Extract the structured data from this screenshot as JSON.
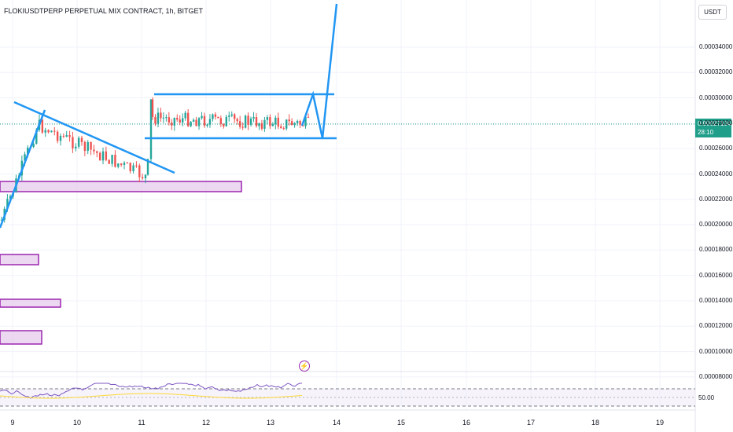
{
  "header": {
    "title": "FLOKIUSDTPERP PERPETUAL MIX CONTRACT, 1h, BITGET"
  },
  "price_scale": {
    "currency": "USDT",
    "labels": [
      "0.00034000",
      "0.00032000",
      "0.00030000",
      "0.00028000",
      "0.00026000",
      "0.00024000",
      "0.00022000",
      "0.00020000",
      "0.00018000",
      "0.00016000",
      "0.00014000",
      "0.00012000",
      "0.00010000",
      "0.00008000"
    ],
    "last_price": "0.00027104",
    "countdown": "28:10"
  },
  "time_axis": {
    "labels": [
      "9",
      "10",
      "11",
      "12",
      "13",
      "14",
      "15",
      "16",
      "17",
      "18",
      "19"
    ]
  },
  "rsi": {
    "level_label": "50.00"
  },
  "colors": {
    "up": "#26a69a",
    "down": "#ef5350",
    "drawing": "#2196f3",
    "zone_border": "#9c27b0",
    "zone_fill": "#e1bee7",
    "last_price_tag": "#1f9e89"
  },
  "icons": {
    "bolt": "lightning-bolt-icon"
  }
}
